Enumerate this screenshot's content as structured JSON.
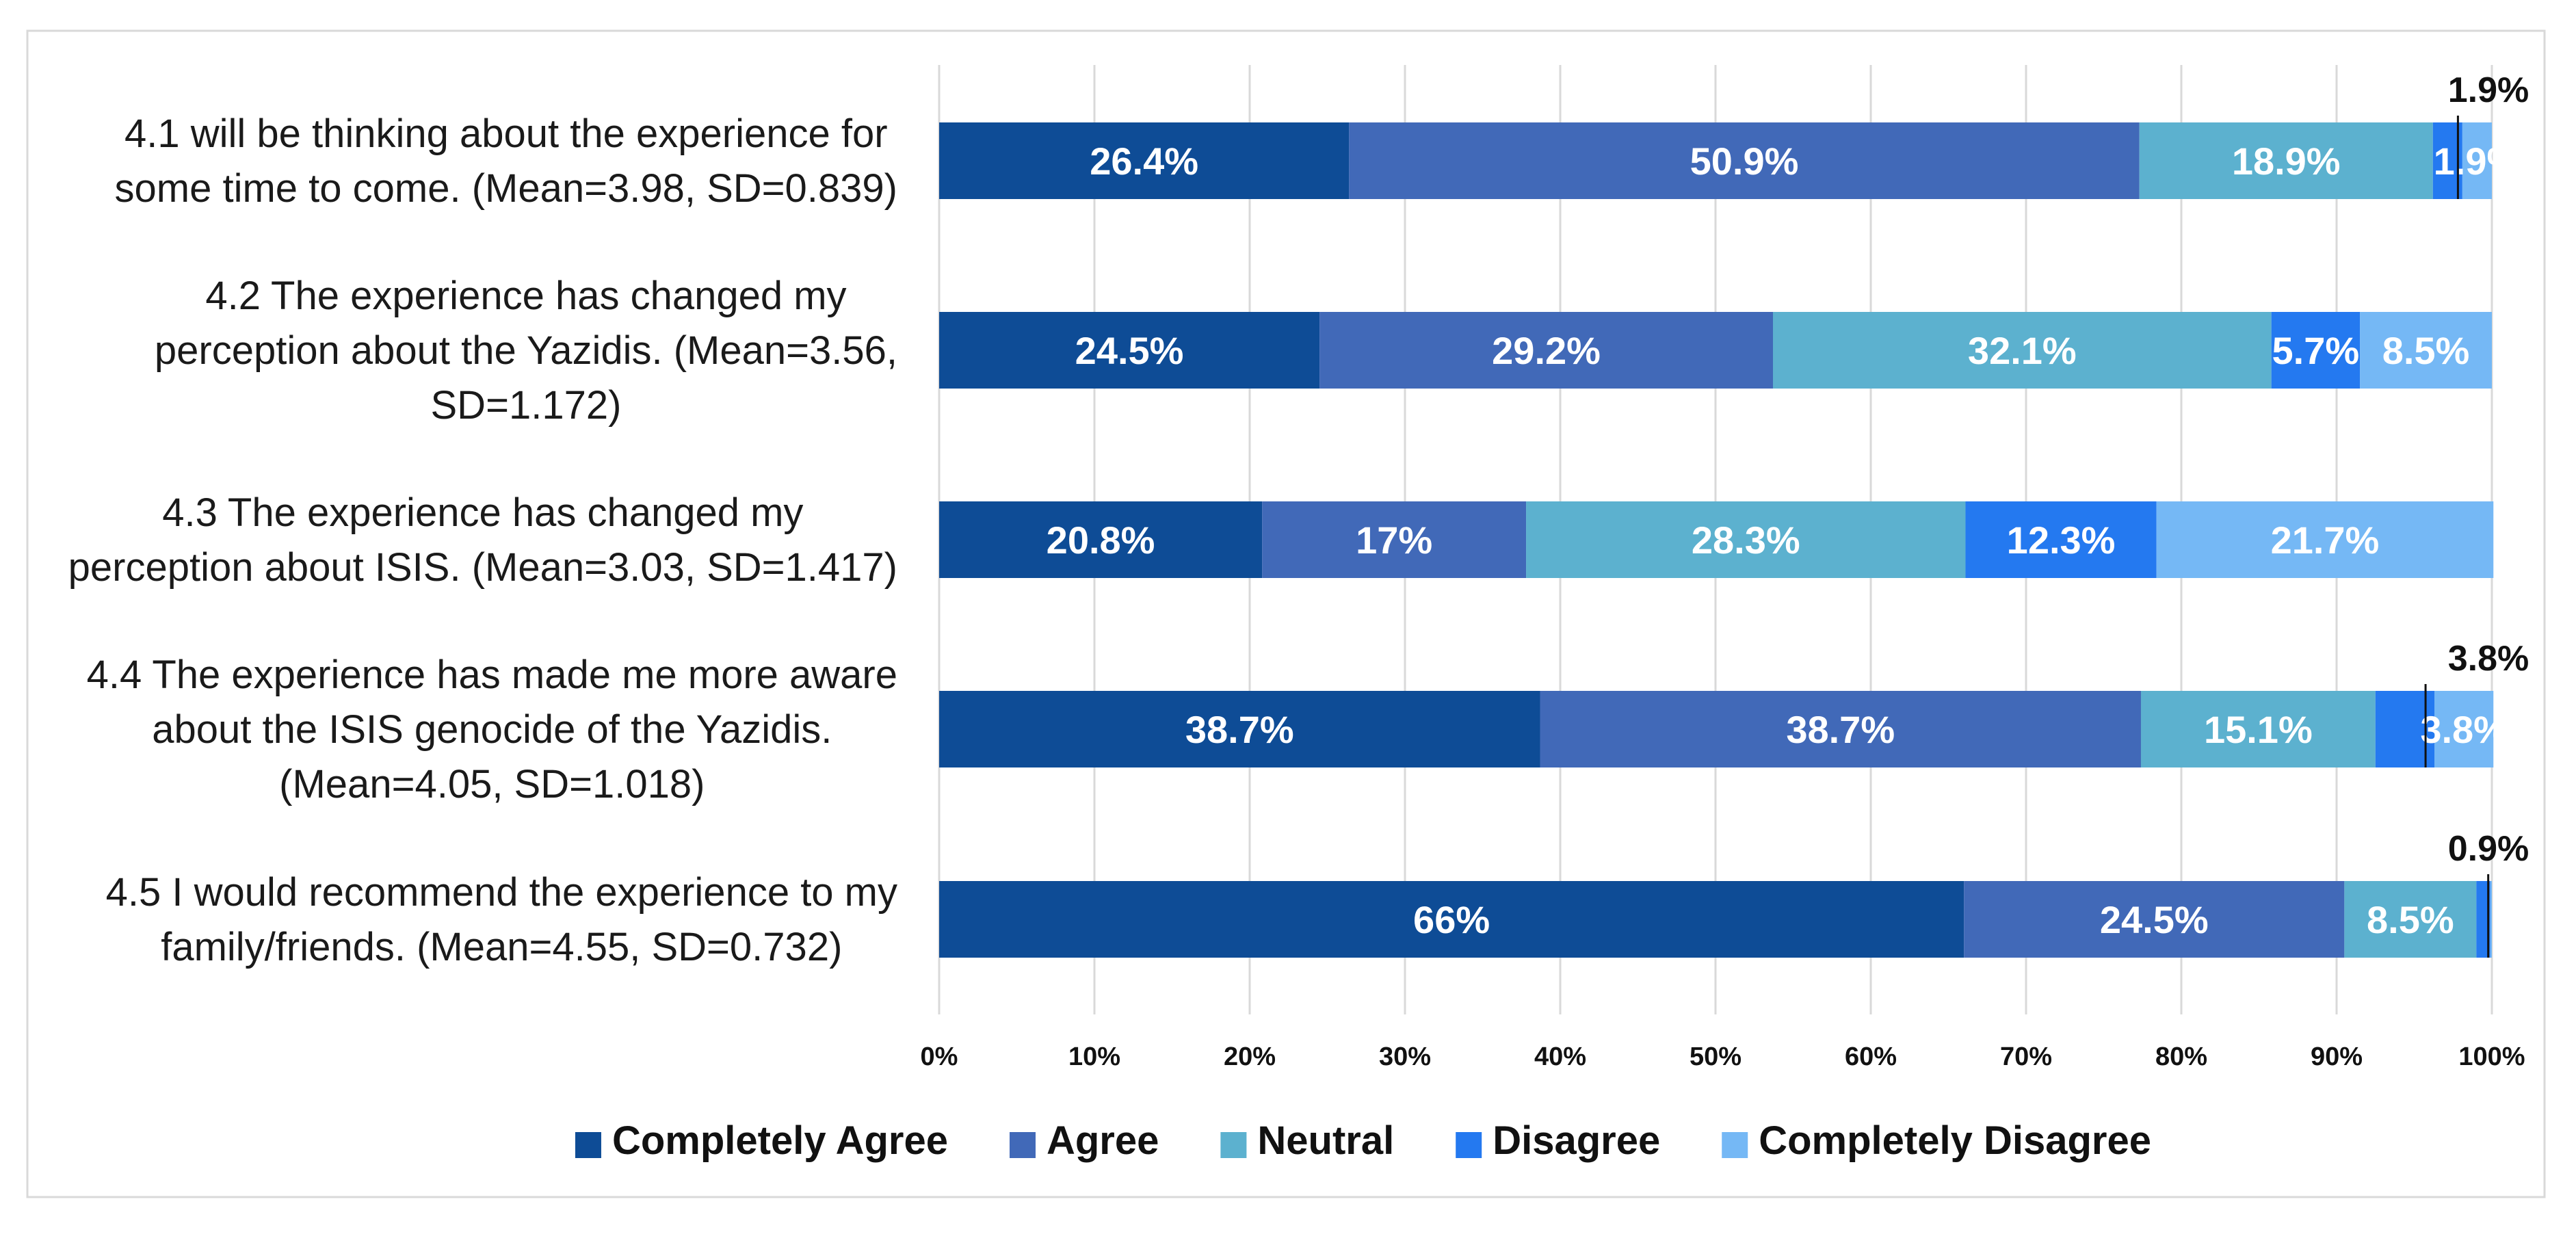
{
  "chart_data": {
    "type": "bar",
    "orientation": "horizontal",
    "stacked": "percent",
    "categories": [
      [
        "4.1 will be thinking about the experience for",
        "some time to come. (Mean=3.98, SD=0.839)"
      ],
      [
        "4.2 The experience has changed my",
        "perception about the Yazidis. (Mean=3.56,",
        "SD=1.172)"
      ],
      [
        "4.3 The experience has changed my",
        "perception about ISIS. (Mean=3.03, SD=1.417)"
      ],
      [
        "4.4 The experience has made me more aware",
        "about the ISIS genocide of the Yazidis.",
        "(Mean=4.05, SD=1.018)"
      ],
      [
        "4.5 I would recommend the experience to my",
        "family/friends. (Mean=4.55, SD=0.732)"
      ]
    ],
    "series": [
      {
        "name": "Completely Agree",
        "color": "#0E4C96",
        "values": [
          26.4,
          24.5,
          20.8,
          38.7,
          66
        ]
      },
      {
        "name": "Agree",
        "color": "#4169B8",
        "values": [
          50.9,
          29.2,
          17,
          38.7,
          24.5
        ]
      },
      {
        "name": "Neutral",
        "color": "#5CB1CF",
        "values": [
          18.9,
          32.1,
          28.3,
          15.1,
          8.5
        ]
      },
      {
        "name": "Disagree",
        "color": "#2479F0",
        "values": [
          1.9,
          5.7,
          12.3,
          3.8,
          0.9
        ]
      },
      {
        "name": "Completely Disagree",
        "color": "#75B8F5",
        "values": [
          1.9,
          8.5,
          21.7,
          3.8,
          0.1
        ]
      }
    ],
    "data_labels": [
      [
        "26.4%",
        "50.9%",
        "18.9%",
        "",
        "1.9%"
      ],
      [
        "24.5%",
        "29.2%",
        "32.1%",
        "5.7%",
        "8.5%"
      ],
      [
        "20.8%",
        "17%",
        "28.3%",
        "12.3%",
        "21.7%"
      ],
      [
        "38.7%",
        "38.7%",
        "15.1%",
        "",
        "3.8%"
      ],
      [
        "66%",
        "24.5%",
        "8.5%",
        "",
        ""
      ]
    ],
    "external_labels": [
      "1.9%",
      "",
      "",
      "3.8%",
      "0.9%"
    ],
    "x_ticks": [
      "0%",
      "10%",
      "20%",
      "30%",
      "40%",
      "50%",
      "60%",
      "70%",
      "80%",
      "90%",
      "100%"
    ],
    "xlim": [
      0,
      100
    ],
    "grid": true,
    "legend_position": "bottom"
  }
}
